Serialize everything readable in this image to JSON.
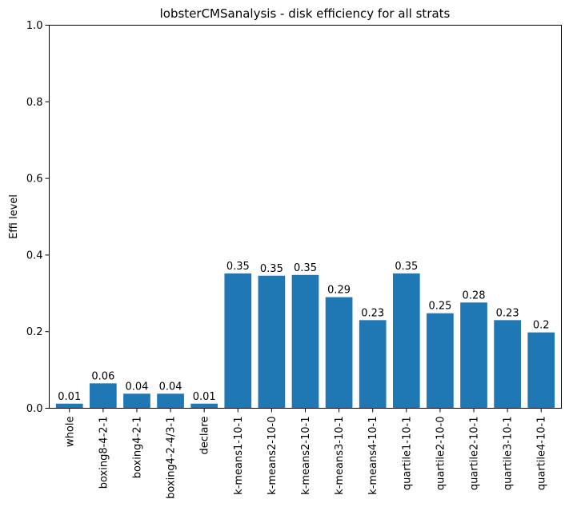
{
  "chart_data": {
    "type": "bar",
    "title": "lobsterCMSanalysis - disk efficiency for all strats",
    "xlabel": "",
    "ylabel": "Effi level",
    "ylim": [
      0,
      1.0
    ],
    "yticks": [
      "0.0",
      "0.2",
      "0.4",
      "0.6",
      "0.8",
      "1.0"
    ],
    "grid": false,
    "bar_color": "#1f77b4",
    "categories": [
      "whole",
      "boxing8-4-2-1",
      "boxing4-2-1",
      "boxing4-2-4/3-1",
      "declare",
      "k-means1-10-1",
      "k-means2-10-0",
      "k-means2-10-1",
      "k-means3-10-1",
      "k-means4-10-1",
      "quartile1-10-1",
      "quartile2-10-0",
      "quartile2-10-1",
      "quartile3-10-1",
      "quartile4-10-1"
    ],
    "values": [
      0.012,
      0.065,
      0.038,
      0.038,
      0.012,
      0.352,
      0.346,
      0.348,
      0.29,
      0.23,
      0.352,
      0.248,
      0.276,
      0.23,
      0.198
    ],
    "value_labels": [
      "0.01",
      "0.06",
      "0.04",
      "0.04",
      "0.01",
      "0.35",
      "0.35",
      "0.35",
      "0.29",
      "0.23",
      "0.35",
      "0.25",
      "0.28",
      "0.23",
      "0.2"
    ]
  }
}
